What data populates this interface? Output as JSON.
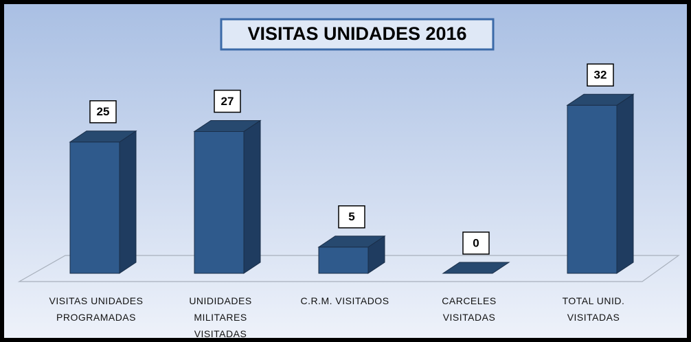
{
  "chart_data": {
    "type": "bar3d",
    "title": "VISITAS UNIDADES 2016",
    "categories": [
      "VISITAS UNIDADES\nPROGRAMADAS",
      "UNIDIDADES\nMILITARES\nVISITADAS",
      "C.R.M. VISITADOS",
      "CARCELES\nVISITADAS",
      "TOTAL UNID.\nVISITADAS"
    ],
    "values": [
      25,
      27,
      5,
      0,
      32
    ],
    "color": "#2f5a8c"
  }
}
